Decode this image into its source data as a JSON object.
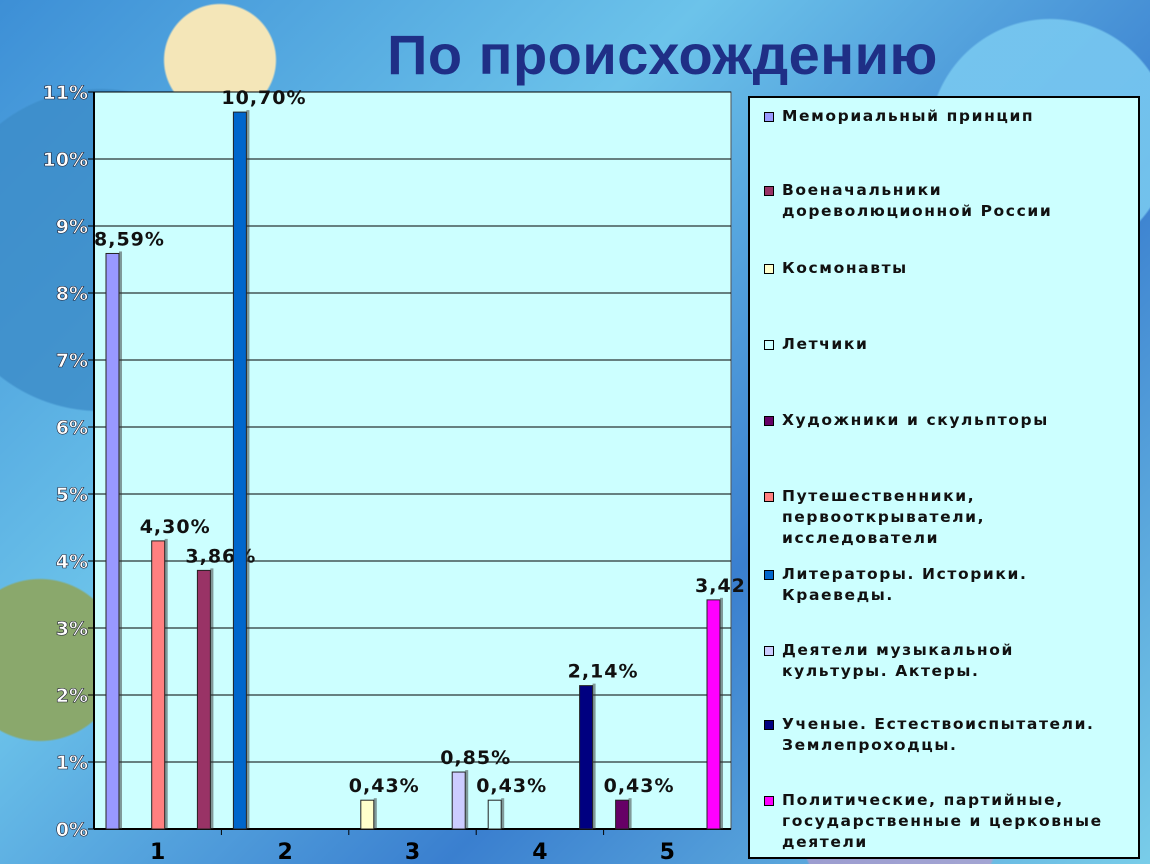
{
  "title": "По происхождению",
  "chart_data": {
    "type": "bar",
    "ylim": [
      0,
      11
    ],
    "ytick_labels": [
      "0%",
      "1%",
      "2%",
      "3%",
      "4%",
      "5%",
      "6%",
      "7%",
      "8%",
      "9%",
      "10%",
      "11%"
    ],
    "categories": [
      "1",
      "2",
      "3",
      "4",
      "5"
    ],
    "grid": true,
    "legend_position": "right",
    "series": [
      {
        "name": "Мемориальный принцип",
        "color": "#9999ff",
        "category": "1",
        "slot": 0,
        "value": 8.59,
        "label": "8,59%"
      },
      {
        "name": "Военачальники дореволюционной России",
        "color": "#993366",
        "category": "1",
        "slot": 1,
        "value": 3.86,
        "label": "3,86%"
      },
      {
        "name": "Космонавты",
        "color": "#ffffcc",
        "category": "3",
        "slot": 0,
        "value": 0.43,
        "label": "0,43%"
      },
      {
        "name": "Летчики",
        "color": "#ccffff",
        "category": "4",
        "slot": 0,
        "value": 0.43,
        "label": "0,43%"
      },
      {
        "name": "Художники и скульпторы",
        "color": "#660066",
        "category": "5",
        "slot": 0,
        "value": 0.43,
        "label": "0,43%"
      },
      {
        "name": "Путешественники, первооткрыватели, исследователи",
        "color": "#ff8080",
        "category": "1",
        "slot": 0.5,
        "value": 4.3,
        "label": "4,30%"
      },
      {
        "name": "Литераторы. Историки. Краеведы.",
        "color": "#0066cc",
        "category": "2",
        "slot": 0,
        "value": 10.7,
        "label": "10,70%"
      },
      {
        "name": "Деятели музыкальной культуры. Актеры.",
        "color": "#ccccff",
        "category": "3",
        "slot": 1,
        "value": 0.85,
        "label": "0,85%"
      },
      {
        "name": "Ученые. Естествоиспытатели. Землепроходцы.",
        "color": "#000080",
        "category": "4",
        "slot": 1,
        "value": 2.14,
        "label": "2,14%"
      },
      {
        "name": "Политические, партийные, государственные и церковные деятели",
        "color": "#ff00ff",
        "category": "5",
        "slot": 1,
        "value": 3.42,
        "label": "3,42"
      }
    ]
  },
  "legend": {
    "items": [
      {
        "text": "Мемориальный принцип",
        "color": "#9999ff"
      },
      {
        "text": "Военачальники\nдореволюционной России",
        "color": "#993366"
      },
      {
        "text": "Космонавты",
        "color": "#ffffcc"
      },
      {
        "text": "Летчики",
        "color": "#ccffff"
      },
      {
        "text": "Художники и скульпторы",
        "color": "#660066"
      },
      {
        "text": "Путешественники,\nпервооткрыватели,\nисследователи",
        "color": "#ff8080"
      },
      {
        "text": "Литераторы. Историки.\nКраеведы.",
        "color": "#0066cc"
      },
      {
        "text": "Деятели музыкальной\nкультуры. Актеры.",
        "color": "#ccccff"
      },
      {
        "text": "Ученые. Естествоиспытатели.\nЗемлепроходцы.",
        "color": "#000080"
      },
      {
        "text": "Политические, партийные,\nгосударственные и церковные\nдеятели",
        "color": "#ff00ff"
      }
    ]
  }
}
